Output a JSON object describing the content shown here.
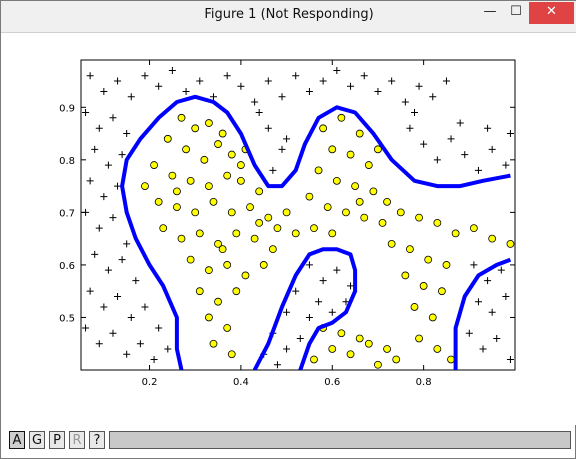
{
  "window": {
    "title": "Figure 1 (Not Responding)",
    "controls": {
      "minimize": "—",
      "maximize": "☐",
      "close": "✕"
    }
  },
  "toolbar": {
    "buttons": [
      {
        "label": "A",
        "state": "active"
      },
      {
        "label": "G",
        "state": "normal"
      },
      {
        "label": "P",
        "state": "normal"
      },
      {
        "label": "R",
        "state": "disabled"
      },
      {
        "label": "?",
        "state": "normal"
      }
    ]
  },
  "chart_data": {
    "type": "scatter",
    "title": "",
    "xlabel": "",
    "ylabel": "",
    "xlim": [
      0.05,
      1.0
    ],
    "ylim": [
      0.4,
      0.99
    ],
    "xticks": [
      0.2,
      0.4,
      0.6,
      0.8
    ],
    "yticks": [
      0.5,
      0.6,
      0.7,
      0.8,
      0.9
    ],
    "grid": false,
    "legend": "none",
    "colors": {
      "positive": "#ffff00",
      "positive_edge": "#000000",
      "negative": "#000000",
      "boundary": "#0000ff"
    },
    "series": [
      {
        "marker": "circle",
        "points": [
          [
            0.27,
            0.88
          ],
          [
            0.3,
            0.86
          ],
          [
            0.33,
            0.87
          ],
          [
            0.36,
            0.85
          ],
          [
            0.24,
            0.84
          ],
          [
            0.28,
            0.82
          ],
          [
            0.32,
            0.8
          ],
          [
            0.35,
            0.83
          ],
          [
            0.38,
            0.81
          ],
          [
            0.41,
            0.82
          ],
          [
            0.21,
            0.79
          ],
          [
            0.25,
            0.77
          ],
          [
            0.29,
            0.76
          ],
          [
            0.33,
            0.75
          ],
          [
            0.37,
            0.77
          ],
          [
            0.4,
            0.76
          ],
          [
            0.44,
            0.74
          ],
          [
            0.19,
            0.75
          ],
          [
            0.22,
            0.72
          ],
          [
            0.26,
            0.71
          ],
          [
            0.3,
            0.7
          ],
          [
            0.34,
            0.72
          ],
          [
            0.38,
            0.7
          ],
          [
            0.42,
            0.71
          ],
          [
            0.46,
            0.69
          ],
          [
            0.5,
            0.7
          ],
          [
            0.23,
            0.67
          ],
          [
            0.27,
            0.65
          ],
          [
            0.31,
            0.66
          ],
          [
            0.35,
            0.64
          ],
          [
            0.39,
            0.66
          ],
          [
            0.43,
            0.65
          ],
          [
            0.47,
            0.63
          ],
          [
            0.29,
            0.61
          ],
          [
            0.33,
            0.59
          ],
          [
            0.37,
            0.6
          ],
          [
            0.41,
            0.58
          ],
          [
            0.45,
            0.6
          ],
          [
            0.31,
            0.55
          ],
          [
            0.35,
            0.53
          ],
          [
            0.39,
            0.55
          ],
          [
            0.33,
            0.5
          ],
          [
            0.37,
            0.48
          ],
          [
            0.34,
            0.45
          ],
          [
            0.38,
            0.43
          ],
          [
            0.58,
            0.86
          ],
          [
            0.62,
            0.88
          ],
          [
            0.66,
            0.85
          ],
          [
            0.6,
            0.82
          ],
          [
            0.64,
            0.81
          ],
          [
            0.68,
            0.79
          ],
          [
            0.57,
            0.78
          ],
          [
            0.61,
            0.76
          ],
          [
            0.65,
            0.75
          ],
          [
            0.69,
            0.74
          ],
          [
            0.72,
            0.72
          ],
          [
            0.55,
            0.73
          ],
          [
            0.59,
            0.71
          ],
          [
            0.63,
            0.7
          ],
          [
            0.67,
            0.69
          ],
          [
            0.71,
            0.68
          ],
          [
            0.75,
            0.7
          ],
          [
            0.79,
            0.69
          ],
          [
            0.83,
            0.68
          ],
          [
            0.87,
            0.66
          ],
          [
            0.91,
            0.67
          ],
          [
            0.95,
            0.65
          ],
          [
            0.99,
            0.64
          ],
          [
            0.56,
            0.67
          ],
          [
            0.6,
            0.66
          ],
          [
            0.73,
            0.64
          ],
          [
            0.77,
            0.63
          ],
          [
            0.81,
            0.61
          ],
          [
            0.85,
            0.6
          ],
          [
            0.76,
            0.58
          ],
          [
            0.8,
            0.56
          ],
          [
            0.84,
            0.55
          ],
          [
            0.78,
            0.52
          ],
          [
            0.82,
            0.5
          ],
          [
            0.79,
            0.46
          ],
          [
            0.83,
            0.44
          ],
          [
            0.86,
            0.42
          ],
          [
            0.58,
            0.48
          ],
          [
            0.62,
            0.47
          ],
          [
            0.66,
            0.46
          ],
          [
            0.6,
            0.44
          ],
          [
            0.64,
            0.43
          ],
          [
            0.68,
            0.45
          ],
          [
            0.72,
            0.44
          ],
          [
            0.56,
            0.42
          ],
          [
            0.7,
            0.41
          ],
          [
            0.74,
            0.42
          ],
          [
            0.48,
            0.67
          ],
          [
            0.52,
            0.66
          ],
          [
            0.44,
            0.68
          ],
          [
            0.36,
            0.63
          ],
          [
            0.26,
            0.74
          ],
          [
            0.4,
            0.79
          ],
          [
            0.7,
            0.82
          ],
          [
            0.66,
            0.72
          ]
        ]
      },
      {
        "marker": "plus",
        "points": [
          [
            0.07,
            0.96
          ],
          [
            0.1,
            0.93
          ],
          [
            0.13,
            0.95
          ],
          [
            0.16,
            0.92
          ],
          [
            0.19,
            0.96
          ],
          [
            0.22,
            0.94
          ],
          [
            0.25,
            0.97
          ],
          [
            0.28,
            0.93
          ],
          [
            0.31,
            0.95
          ],
          [
            0.34,
            0.92
          ],
          [
            0.37,
            0.96
          ],
          [
            0.4,
            0.94
          ],
          [
            0.43,
            0.91
          ],
          [
            0.46,
            0.95
          ],
          [
            0.49,
            0.92
          ],
          [
            0.52,
            0.96
          ],
          [
            0.55,
            0.93
          ],
          [
            0.58,
            0.95
          ],
          [
            0.61,
            0.97
          ],
          [
            0.64,
            0.94
          ],
          [
            0.67,
            0.96
          ],
          [
            0.7,
            0.93
          ],
          [
            0.73,
            0.95
          ],
          [
            0.76,
            0.91
          ],
          [
            0.79,
            0.94
          ],
          [
            0.82,
            0.92
          ],
          [
            0.85,
            0.95
          ],
          [
            0.06,
            0.89
          ],
          [
            0.09,
            0.86
          ],
          [
            0.12,
            0.88
          ],
          [
            0.15,
            0.85
          ],
          [
            0.08,
            0.82
          ],
          [
            0.11,
            0.79
          ],
          [
            0.14,
            0.81
          ],
          [
            0.07,
            0.76
          ],
          [
            0.1,
            0.73
          ],
          [
            0.13,
            0.75
          ],
          [
            0.06,
            0.7
          ],
          [
            0.09,
            0.67
          ],
          [
            0.12,
            0.69
          ],
          [
            0.15,
            0.64
          ],
          [
            0.08,
            0.62
          ],
          [
            0.11,
            0.59
          ],
          [
            0.14,
            0.61
          ],
          [
            0.17,
            0.57
          ],
          [
            0.07,
            0.55
          ],
          [
            0.1,
            0.52
          ],
          [
            0.13,
            0.54
          ],
          [
            0.16,
            0.5
          ],
          [
            0.19,
            0.52
          ],
          [
            0.22,
            0.48
          ],
          [
            0.06,
            0.48
          ],
          [
            0.09,
            0.45
          ],
          [
            0.12,
            0.47
          ],
          [
            0.15,
            0.43
          ],
          [
            0.18,
            0.45
          ],
          [
            0.21,
            0.42
          ],
          [
            0.24,
            0.44
          ],
          [
            0.46,
            0.86
          ],
          [
            0.49,
            0.82
          ],
          [
            0.47,
            0.78
          ],
          [
            0.5,
            0.84
          ],
          [
            0.44,
            0.89
          ],
          [
            0.77,
            0.86
          ],
          [
            0.8,
            0.83
          ],
          [
            0.83,
            0.8
          ],
          [
            0.86,
            0.84
          ],
          [
            0.89,
            0.81
          ],
          [
            0.92,
            0.78
          ],
          [
            0.95,
            0.82
          ],
          [
            0.98,
            0.79
          ],
          [
            0.78,
            0.89
          ],
          [
            0.88,
            0.87
          ],
          [
            0.94,
            0.86
          ],
          [
            0.99,
            0.85
          ],
          [
            0.55,
            0.6
          ],
          [
            0.58,
            0.57
          ],
          [
            0.61,
            0.59
          ],
          [
            0.64,
            0.56
          ],
          [
            0.57,
            0.53
          ],
          [
            0.6,
            0.51
          ],
          [
            0.63,
            0.53
          ],
          [
            0.55,
            0.5
          ],
          [
            0.52,
            0.55
          ],
          [
            0.5,
            0.51
          ],
          [
            0.47,
            0.47
          ],
          [
            0.5,
            0.44
          ],
          [
            0.53,
            0.46
          ],
          [
            0.45,
            0.43
          ],
          [
            0.48,
            0.41
          ],
          [
            0.91,
            0.6
          ],
          [
            0.94,
            0.57
          ],
          [
            0.97,
            0.59
          ],
          [
            0.92,
            0.53
          ],
          [
            0.95,
            0.51
          ],
          [
            0.98,
            0.54
          ],
          [
            0.9,
            0.47
          ],
          [
            0.93,
            0.44
          ],
          [
            0.96,
            0.46
          ],
          [
            0.99,
            0.42
          ]
        ]
      }
    ],
    "boundaries": [
      [
        [
          0.27,
          0.4
        ],
        [
          0.26,
          0.44
        ],
        [
          0.26,
          0.5
        ],
        [
          0.23,
          0.56
        ],
        [
          0.2,
          0.6
        ],
        [
          0.17,
          0.65
        ],
        [
          0.15,
          0.7
        ],
        [
          0.14,
          0.75
        ],
        [
          0.15,
          0.8
        ],
        [
          0.18,
          0.84
        ],
        [
          0.22,
          0.88
        ],
        [
          0.26,
          0.91
        ],
        [
          0.3,
          0.92
        ],
        [
          0.34,
          0.91
        ],
        [
          0.37,
          0.89
        ],
        [
          0.4,
          0.85
        ],
        [
          0.43,
          0.79
        ],
        [
          0.46,
          0.75
        ],
        [
          0.49,
          0.75
        ],
        [
          0.52,
          0.78
        ],
        [
          0.54,
          0.83
        ],
        [
          0.57,
          0.88
        ],
        [
          0.61,
          0.9
        ],
        [
          0.65,
          0.89
        ],
        [
          0.69,
          0.85
        ],
        [
          0.73,
          0.8
        ],
        [
          0.78,
          0.76
        ],
        [
          0.83,
          0.75
        ],
        [
          0.88,
          0.75
        ],
        [
          0.93,
          0.76
        ],
        [
          0.99,
          0.77
        ]
      ],
      [
        [
          0.43,
          0.4
        ],
        [
          0.46,
          0.45
        ],
        [
          0.49,
          0.52
        ],
        [
          0.52,
          0.58
        ],
        [
          0.55,
          0.62
        ],
        [
          0.58,
          0.63
        ],
        [
          0.61,
          0.63
        ],
        [
          0.64,
          0.62
        ],
        [
          0.65,
          0.59
        ],
        [
          0.65,
          0.55
        ],
        [
          0.63,
          0.51
        ],
        [
          0.6,
          0.49
        ],
        [
          0.57,
          0.48
        ],
        [
          0.55,
          0.45
        ],
        [
          0.53,
          0.4
        ]
      ],
      [
        [
          0.87,
          0.4
        ],
        [
          0.87,
          0.48
        ],
        [
          0.89,
          0.54
        ],
        [
          0.92,
          0.58
        ],
        [
          0.96,
          0.6
        ],
        [
          0.99,
          0.61
        ]
      ]
    ]
  }
}
